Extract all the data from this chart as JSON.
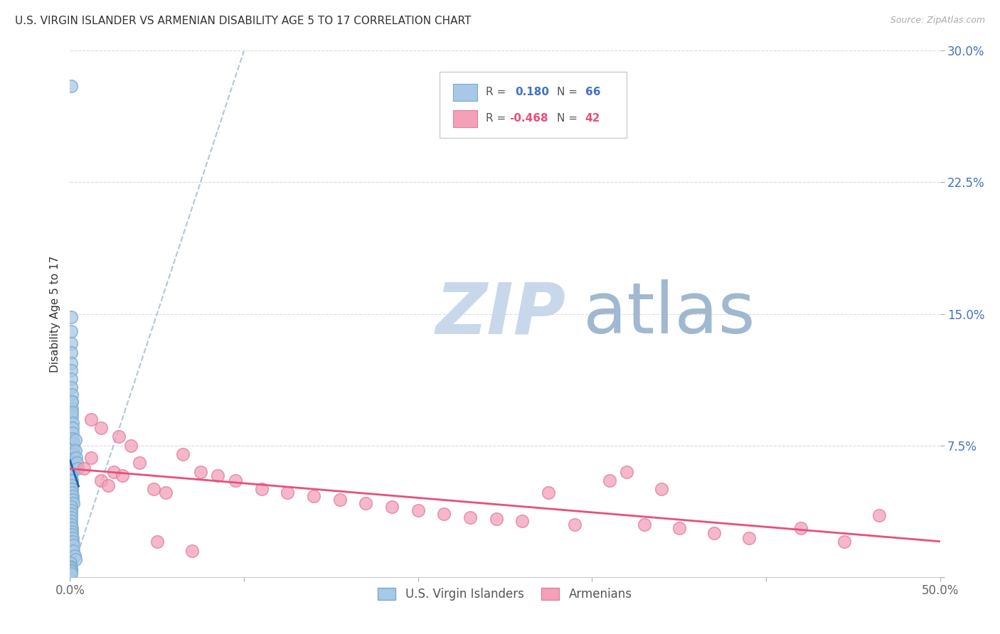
{
  "title": "U.S. VIRGIN ISLANDER VS ARMENIAN DISABILITY AGE 5 TO 17 CORRELATION CHART",
  "source": "Source: ZipAtlas.com",
  "ylabel": "Disability Age 5 to 17",
  "xlim": [
    0,
    0.5
  ],
  "ylim": [
    0,
    0.3
  ],
  "r_blue": 0.18,
  "n_blue": 66,
  "r_pink": -0.468,
  "n_pink": 42,
  "legend_label_blue": "U.S. Virgin Islanders",
  "legend_label_pink": "Armenians",
  "blue_color": "#a8c8e8",
  "pink_color": "#f4a0b8",
  "blue_line_color": "#1a5fa8",
  "pink_line_color": "#e8507a",
  "diag_color": "#a8c0d8",
  "watermark_zip_color": "#c8d8ea",
  "watermark_atlas_color": "#a0b8d0",
  "background_color": "#ffffff",
  "grid_color": "#d8d8d8",
  "ytick_color": "#4472c4",
  "xtick_color": "#666666",
  "blue_x": [
    0.0008,
    0.0005,
    0.0005,
    0.0005,
    0.0006,
    0.0006,
    0.0007,
    0.0008,
    0.0008,
    0.0009,
    0.001,
    0.001,
    0.001,
    0.0012,
    0.0012,
    0.0013,
    0.0014,
    0.0015,
    0.0016,
    0.0018,
    0.002,
    0.002,
    0.0022,
    0.0025,
    0.0028,
    0.003,
    0.003,
    0.0035,
    0.004,
    0.0045,
    0.0005,
    0.0005,
    0.0005,
    0.0006,
    0.0006,
    0.0007,
    0.0008,
    0.0008,
    0.0009,
    0.001,
    0.001,
    0.0012,
    0.0013,
    0.0015,
    0.0017,
    0.0005,
    0.0005,
    0.0006,
    0.0006,
    0.0007,
    0.0008,
    0.0009,
    0.001,
    0.0011,
    0.0013,
    0.0015,
    0.0018,
    0.002,
    0.0025,
    0.003,
    0.0004,
    0.0004,
    0.0005,
    0.0005,
    0.0006,
    0.0007
  ],
  "blue_y": [
    0.28,
    0.148,
    0.14,
    0.133,
    0.128,
    0.122,
    0.118,
    0.113,
    0.108,
    0.104,
    0.1,
    0.096,
    0.092,
    0.1,
    0.094,
    0.088,
    0.085,
    0.082,
    0.079,
    0.076,
    0.073,
    0.07,
    0.068,
    0.065,
    0.062,
    0.078,
    0.072,
    0.068,
    0.065,
    0.062,
    0.058,
    0.055,
    0.052,
    0.05,
    0.048,
    0.046,
    0.044,
    0.058,
    0.055,
    0.052,
    0.05,
    0.048,
    0.046,
    0.044,
    0.042,
    0.04,
    0.038,
    0.036,
    0.034,
    0.032,
    0.03,
    0.028,
    0.026,
    0.024,
    0.022,
    0.02,
    0.018,
    0.015,
    0.012,
    0.01,
    0.008,
    0.006,
    0.005,
    0.004,
    0.003,
    0.002
  ],
  "pink_x": [
    0.008,
    0.012,
    0.018,
    0.022,
    0.028,
    0.035,
    0.012,
    0.018,
    0.025,
    0.03,
    0.04,
    0.048,
    0.055,
    0.065,
    0.075,
    0.085,
    0.095,
    0.11,
    0.125,
    0.14,
    0.155,
    0.17,
    0.185,
    0.2,
    0.215,
    0.23,
    0.245,
    0.26,
    0.275,
    0.29,
    0.31,
    0.33,
    0.35,
    0.37,
    0.39,
    0.32,
    0.34,
    0.42,
    0.445,
    0.465,
    0.05,
    0.07
  ],
  "pink_y": [
    0.062,
    0.068,
    0.055,
    0.052,
    0.08,
    0.075,
    0.09,
    0.085,
    0.06,
    0.058,
    0.065,
    0.05,
    0.048,
    0.07,
    0.06,
    0.058,
    0.055,
    0.05,
    0.048,
    0.046,
    0.044,
    0.042,
    0.04,
    0.038,
    0.036,
    0.034,
    0.033,
    0.032,
    0.048,
    0.03,
    0.055,
    0.03,
    0.028,
    0.025,
    0.022,
    0.06,
    0.05,
    0.028,
    0.02,
    0.035,
    0.02,
    0.015
  ]
}
